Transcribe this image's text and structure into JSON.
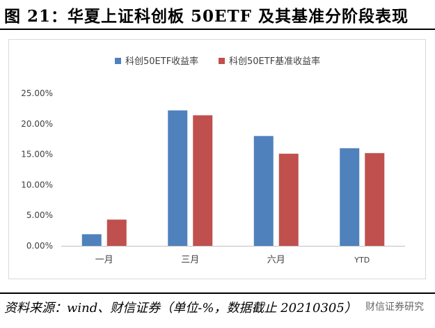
{
  "figure": {
    "title": "图 21：华夏上证科创板 50ETF 及其基准分阶段表现",
    "source": "资料来源：wind、财信证券（单位-%，数据截止 20210305）",
    "watermark": "财信证券研究"
  },
  "chart_data": {
    "type": "bar",
    "categories": [
      "一月",
      "三月",
      "六月",
      "YTD"
    ],
    "series": [
      {
        "name": "科创50ETF收益率",
        "values": [
          1.9,
          22.2,
          18.0,
          16.0
        ],
        "color": "#4f81bd"
      },
      {
        "name": "科创50ETF基准收益率",
        "values": [
          4.3,
          21.4,
          15.1,
          15.2
        ],
        "color": "#c0504d"
      }
    ],
    "yticks": [
      "0.00%",
      "5.00%",
      "10.00%",
      "15.00%",
      "20.00%",
      "25.00%"
    ],
    "ylim": [
      0,
      25
    ],
    "grid": false,
    "legend": "top-center"
  }
}
